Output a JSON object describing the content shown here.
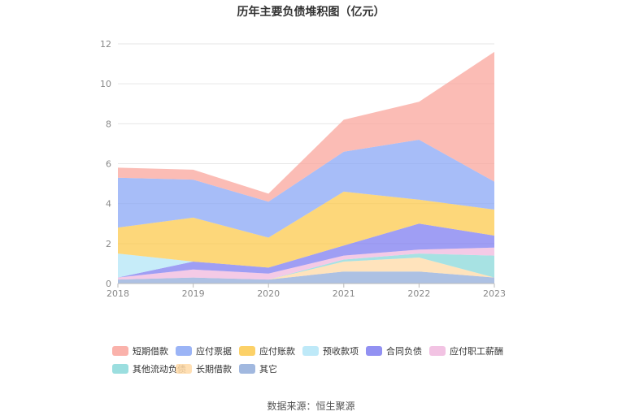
{
  "title": "历年主要负债堆积图（亿元）",
  "source": "数据来源：恒生聚源",
  "chart_data": {
    "type": "area",
    "stacked": true,
    "title": "历年主要负债堆积图（亿元）",
    "categories": [
      "2018",
      "2019",
      "2020",
      "2021",
      "2022",
      "2023"
    ],
    "ylim": [
      0,
      12
    ],
    "yticks": [
      0,
      2,
      4,
      6,
      8,
      10,
      12
    ],
    "grid": true,
    "legend_position": "bottom",
    "series": [
      {
        "name": "其它",
        "color": "#91acd9",
        "values": [
          0.2,
          0.3,
          0.2,
          0.6,
          0.6,
          0.3
        ]
      },
      {
        "name": "长期借款",
        "color": "#ffd9a6",
        "values": [
          0,
          0,
          0,
          0.5,
          0.7,
          0
        ]
      },
      {
        "name": "其他流动负债",
        "color": "#89d8d9",
        "values": [
          0,
          0,
          0,
          0.1,
          0.2,
          1.1
        ]
      },
      {
        "name": "应付职工薪酬",
        "color": "#f0b8de",
        "values": [
          0.1,
          0.4,
          0.3,
          0.2,
          0.2,
          0.4
        ]
      },
      {
        "name": "合同负债",
        "color": "#7f7ef0",
        "values": [
          0,
          0.4,
          0.3,
          0.5,
          1.3,
          0.6
        ]
      },
      {
        "name": "预收款项",
        "color": "#b3e5f7",
        "values": [
          1.2,
          0,
          0,
          0,
          0,
          0
        ]
      },
      {
        "name": "应付账款",
        "color": "#fcc94d",
        "values": [
          1.3,
          2.2,
          1.5,
          2.7,
          1.2,
          1.3
        ]
      },
      {
        "name": "应付票据",
        "color": "#8aa7f5",
        "values": [
          2.5,
          1.9,
          1.8,
          2.0,
          3.0,
          1.4
        ]
      },
      {
        "name": "短期借款",
        "color": "#f9a59c",
        "values": [
          0.5,
          0.5,
          0.4,
          1.6,
          1.9,
          6.5
        ]
      }
    ]
  },
  "legend": [
    {
      "label": "短期借款",
      "color": "#f9a59c"
    },
    {
      "label": "应付票据",
      "color": "#8aa7f5"
    },
    {
      "label": "应付账款",
      "color": "#fcc94d"
    },
    {
      "label": "预收款项",
      "color": "#b3e5f7"
    },
    {
      "label": "合同负债",
      "color": "#7f7ef0"
    },
    {
      "label": "应付职工薪酬",
      "color": "#f0b8de"
    },
    {
      "label": "其他流动负债",
      "color": "#89d8d9"
    },
    {
      "label": "长期借款",
      "color": "#ffd9a6"
    },
    {
      "label": "其它",
      "color": "#91acd9"
    }
  ]
}
